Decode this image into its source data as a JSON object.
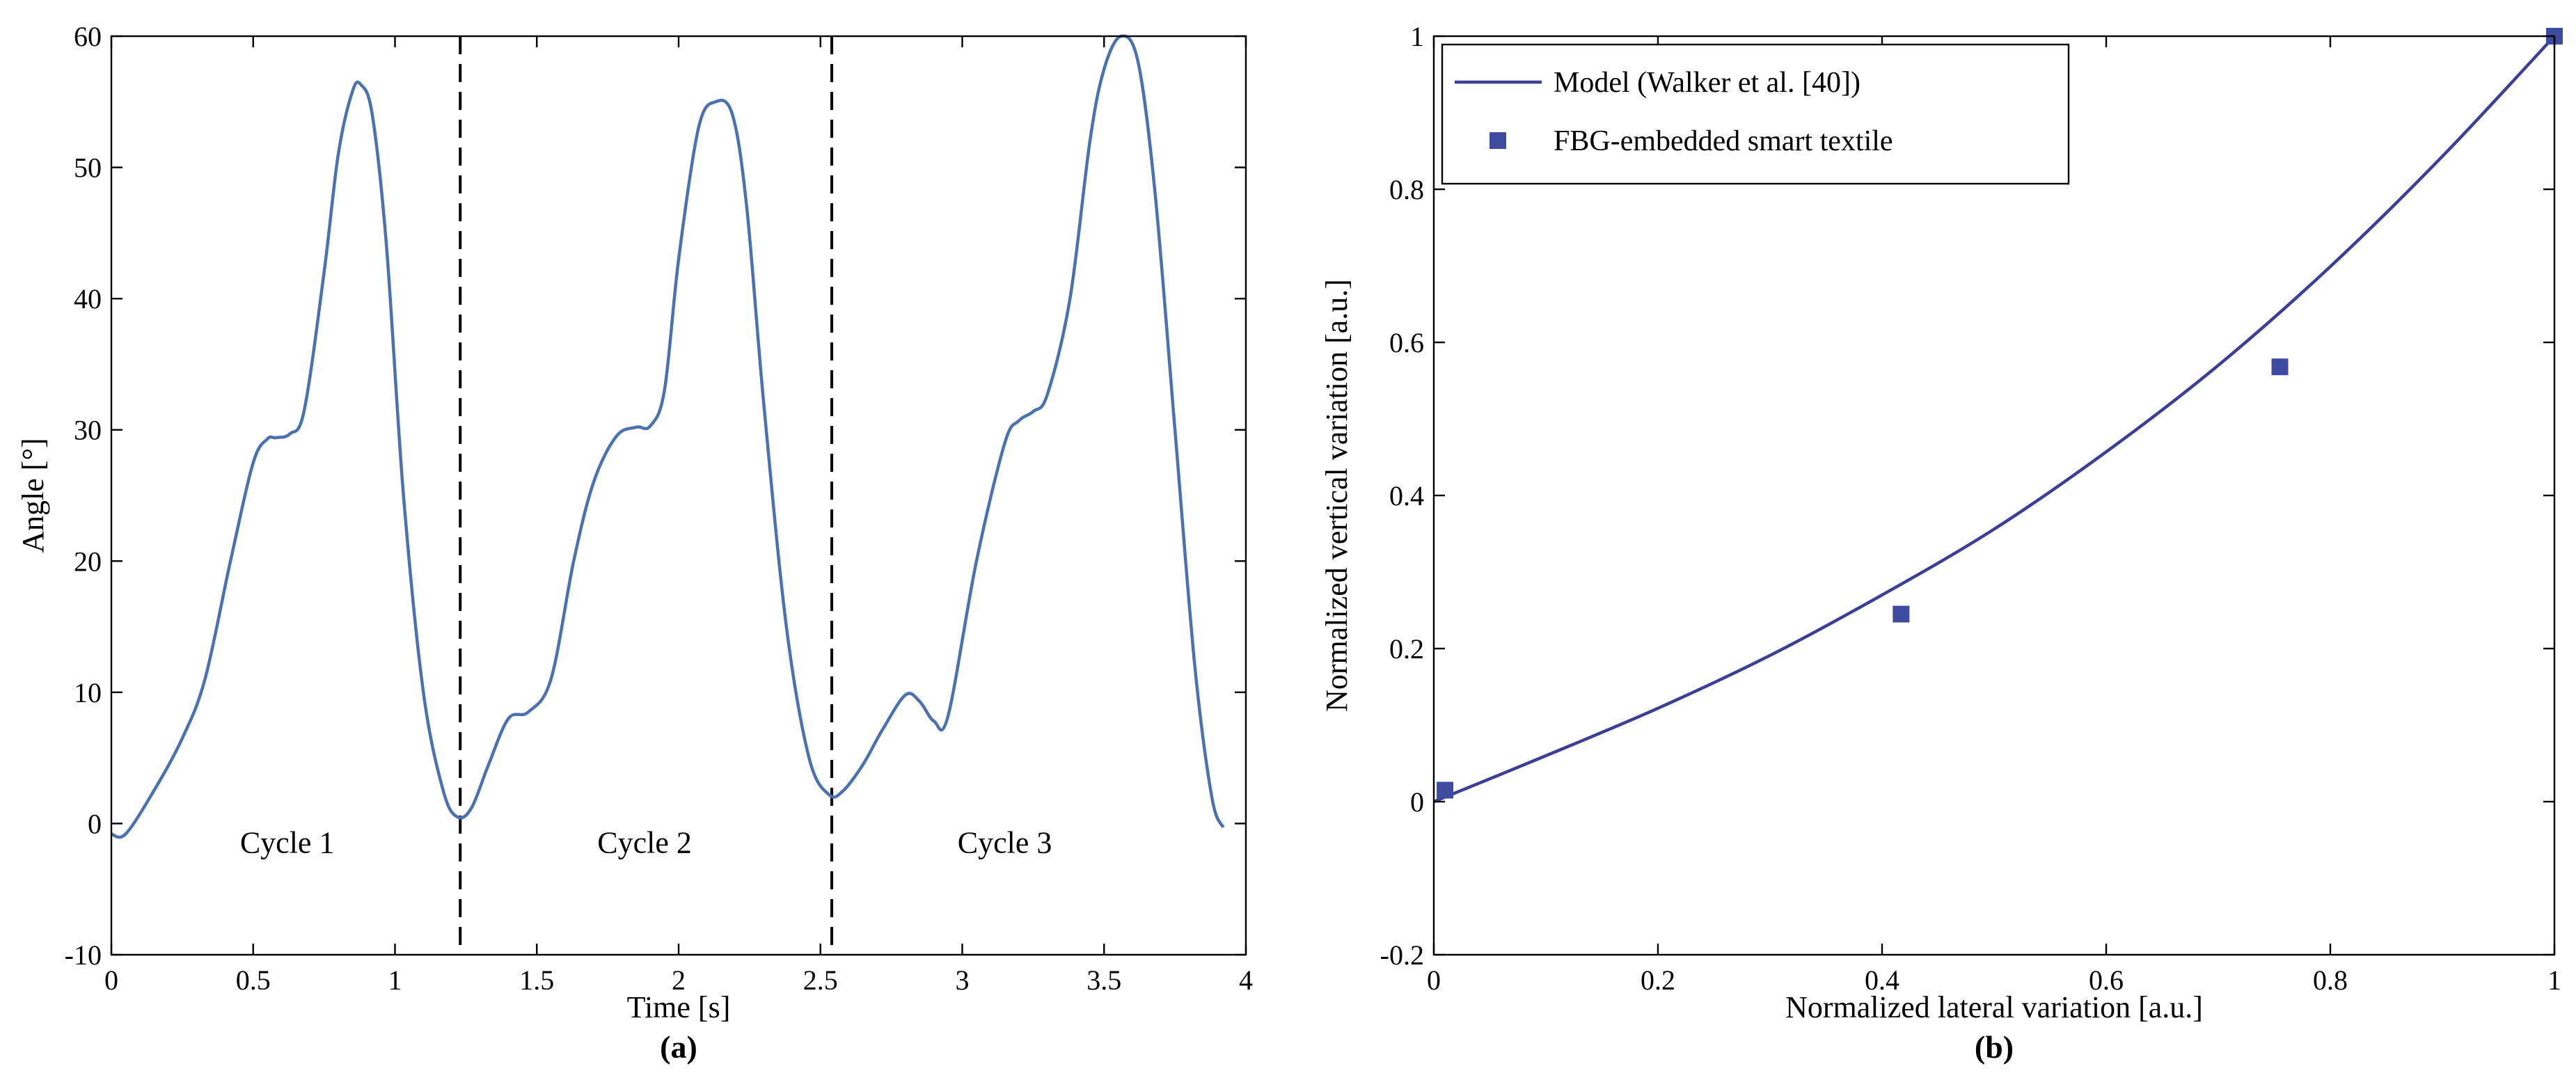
{
  "chart_data": [
    {
      "type": "line",
      "panel_label": "(a)",
      "xlabel": "Time [s]",
      "ylabel": "Angle [°]",
      "xlim": [
        0,
        4
      ],
      "ylim": [
        -10,
        60
      ],
      "xticks": [
        0,
        0.5,
        1,
        1.5,
        2,
        2.5,
        3,
        3.5,
        4
      ],
      "xtick_labels": [
        "0",
        "0.5",
        "1",
        "1.5",
        "2",
        "2.5",
        "3",
        "3.5",
        "4"
      ],
      "yticks": [
        -10,
        0,
        10,
        20,
        30,
        40,
        50,
        60
      ],
      "ytick_labels": [
        "-10",
        "0",
        "10",
        "20",
        "30",
        "40",
        "50",
        "60"
      ],
      "cycle_dividers": [
        1.23,
        2.54
      ],
      "annotations": [
        {
          "text": "Cycle 1",
          "x": 0.62,
          "y": -1.5
        },
        {
          "text": "Cycle 2",
          "x": 1.88,
          "y": -1.5
        },
        {
          "text": "Cycle 3",
          "x": 3.15,
          "y": -1.5
        }
      ],
      "series": [
        {
          "name": "Angle",
          "x": [
            0,
            0.05,
            0.15,
            0.25,
            0.33,
            0.42,
            0.5,
            0.55,
            0.58,
            0.63,
            0.68,
            0.75,
            0.8,
            0.85,
            0.88,
            0.92,
            0.97,
            1.03,
            1.1,
            1.17,
            1.22,
            1.27,
            1.33,
            1.4,
            1.47,
            1.55,
            1.63,
            1.7,
            1.78,
            1.85,
            1.9,
            1.95,
            2.0,
            2.07,
            2.13,
            2.19,
            2.24,
            2.3,
            2.38,
            2.46,
            2.53,
            2.58,
            2.65,
            2.72,
            2.8,
            2.85,
            2.9,
            2.95,
            3.05,
            3.15,
            3.2,
            3.25,
            3.3,
            3.38,
            3.45,
            3.5,
            3.56,
            3.62,
            3.68,
            3.75,
            3.82,
            3.88,
            3.92
          ],
          "values": [
            -0.8,
            -0.8,
            2.5,
            6.5,
            11,
            20,
            27.5,
            29.3,
            29.4,
            29.7,
            31.5,
            42,
            51,
            55.8,
            56.3,
            54,
            44,
            25,
            10,
            2.5,
            0.5,
            1.2,
            4.5,
            8,
            8.5,
            11,
            20,
            26,
            29.5,
            30.2,
            30.3,
            33,
            43,
            53,
            55,
            54,
            47,
            32,
            15,
            5,
            2.2,
            2.5,
            4.5,
            7.2,
            9.8,
            9.3,
            7.8,
            8.2,
            20,
            29,
            30.7,
            31.4,
            32.7,
            40,
            52,
            57.5,
            60,
            58,
            48,
            30,
            12,
            2,
            -0.3
          ]
        }
      ]
    },
    {
      "type": "line+scatter",
      "panel_label": "(b)",
      "xlabel": "Normalized lateral variation [a.u.]",
      "ylabel": "Normalized vertical variation [a.u.]",
      "xlim": [
        0,
        1
      ],
      "ylim": [
        -0.2,
        1
      ],
      "xticks": [
        0,
        0.2,
        0.4,
        0.6,
        0.8,
        1
      ],
      "xtick_labels": [
        "0",
        "0.2",
        "0.4",
        "0.6",
        "0.8",
        "1"
      ],
      "yticks": [
        -0.2,
        0,
        0.2,
        0.4,
        0.6,
        0.8,
        1
      ],
      "ytick_labels": [
        "-0.2",
        "0",
        "0.2",
        "0.4",
        "0.6",
        "0.8",
        "1"
      ],
      "legend_position": "top-left",
      "legend": [
        "Model (Walker et al. [40])",
        "FBG-embedded smart textile"
      ],
      "series": [
        {
          "name": "Model (Walker et al. [40])",
          "kind": "line",
          "x": [
            0,
            0.1,
            0.2,
            0.3,
            0.4,
            0.5,
            0.6,
            0.7,
            0.8,
            0.9,
            1.0
          ],
          "values": [
            0,
            0.06,
            0.122,
            0.191,
            0.27,
            0.356,
            0.457,
            0.57,
            0.699,
            0.843,
            1.0
          ]
        },
        {
          "name": "FBG-embedded smart textile",
          "kind": "scatter",
          "x": [
            0.01,
            0.417,
            0.755,
            1.0
          ],
          "values": [
            0.015,
            0.245,
            0.568,
            1.0
          ]
        }
      ]
    }
  ]
}
